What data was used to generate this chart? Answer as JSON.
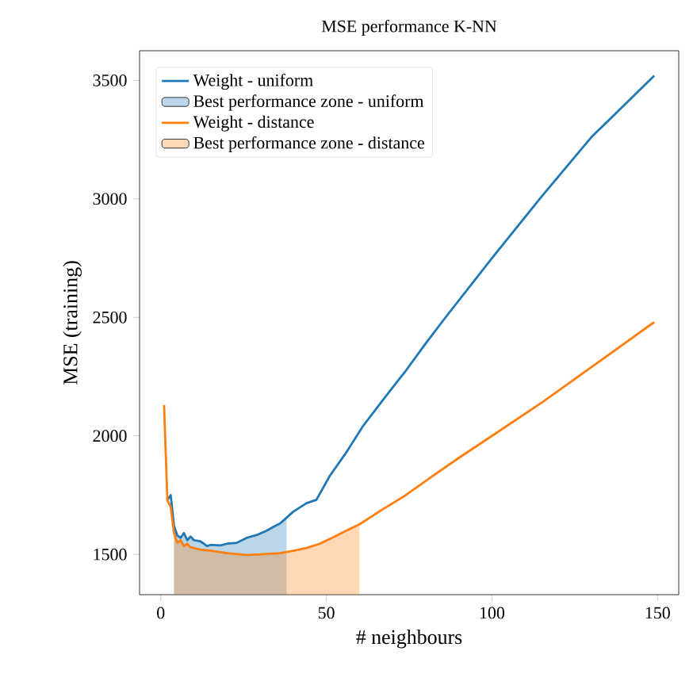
{
  "chart_data": {
    "type": "line",
    "title": "MSE performance K-NN",
    "xlabel": "# neighbours",
    "ylabel": "MSE (training)",
    "xlim": [
      -6.4,
      156.4
    ],
    "ylim": [
      1330,
      3625
    ],
    "xticks": [
      0,
      50,
      100,
      150
    ],
    "yticks": [
      1500,
      2000,
      2500,
      3000,
      3500
    ],
    "legend": "top left",
    "grid": false,
    "series": [
      {
        "name": "Weight - uniform",
        "color": "#1f77b4",
        "x": [
          2,
          3,
          4,
          5,
          6,
          7,
          8,
          9,
          10,
          12,
          14,
          15,
          18,
          20,
          23,
          26,
          29,
          32,
          34,
          36,
          38,
          40,
          44,
          47,
          51,
          56,
          61,
          67,
          74,
          80,
          86,
          100,
          115,
          130,
          149
        ],
        "values": [
          1730,
          1750,
          1620,
          1580,
          1570,
          1590,
          1560,
          1575,
          1560,
          1555,
          1535,
          1540,
          1538,
          1545,
          1549,
          1570,
          1582,
          1600,
          1616,
          1630,
          1655,
          1680,
          1716,
          1730,
          1830,
          1930,
          2040,
          2150,
          2275,
          2390,
          2500,
          2750,
          3010,
          3260,
          3520
        ]
      },
      {
        "name": "Best performance zone - uniform",
        "type": "area",
        "color": "#1f77b4",
        "x": [
          4,
          5,
          6,
          7,
          8,
          9,
          10,
          12,
          14,
          15,
          18,
          20,
          23,
          26,
          29,
          32,
          34,
          36,
          38
        ],
        "values": [
          1620,
          1580,
          1570,
          1590,
          1560,
          1575,
          1560,
          1555,
          1535,
          1540,
          1538,
          1545,
          1549,
          1570,
          1582,
          1600,
          1616,
          1630,
          1655
        ]
      },
      {
        "name": "Weight - distance",
        "color": "#ff7f0e",
        "x": [
          1,
          2,
          3,
          4,
          5,
          6,
          7,
          8,
          9,
          10,
          12,
          15,
          20,
          26,
          30,
          36,
          40,
          44,
          48,
          52,
          56,
          60,
          67,
          74,
          82,
          90,
          100,
          115,
          130,
          149
        ],
        "values": [
          2130,
          1728,
          1700,
          1590,
          1549,
          1560,
          1535,
          1545,
          1530,
          1527,
          1520,
          1516,
          1505,
          1498,
          1500,
          1505,
          1515,
          1527,
          1545,
          1572,
          1600,
          1627,
          1690,
          1750,
          1830,
          1907,
          2000,
          2140,
          2290,
          2480
        ]
      },
      {
        "name": "Best performance zone - distance",
        "type": "area",
        "color": "#ff7f0e",
        "x": [
          4,
          5,
          6,
          7,
          8,
          9,
          10,
          12,
          15,
          20,
          26,
          30,
          36,
          40,
          44,
          48,
          52,
          56,
          60
        ],
        "values": [
          1590,
          1549,
          1560,
          1535,
          1545,
          1530,
          1527,
          1520,
          1516,
          1505,
          1498,
          1500,
          1505,
          1515,
          1527,
          1545,
          1572,
          1600,
          1627
        ]
      }
    ]
  }
}
